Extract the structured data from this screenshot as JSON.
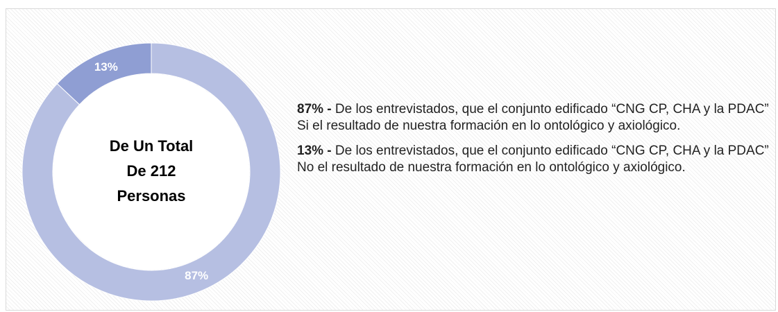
{
  "chart_data": {
    "type": "pie",
    "values": [
      87,
      13
    ],
    "value_labels": [
      "87%",
      "13%"
    ],
    "colors": [
      "#b6bfe2",
      "#8f9ed3"
    ],
    "center_text": [
      "De Un Total",
      "De 212",
      "Personas"
    ],
    "notes": [
      {
        "lead": "87% -",
        "text": "De los entrevistados, que el conjunto edificado “CNG CP, CHA y la PDAC” Si el resultado de nuestra formación en lo ontológico y axiológico."
      },
      {
        "lead": "13% -",
        "text": " De los entrevistados,  que el conjunto edificado “CNG CP, CHA y la PDAC” No el resultado de nuestra formación en lo ontológico y axiológico."
      }
    ]
  }
}
